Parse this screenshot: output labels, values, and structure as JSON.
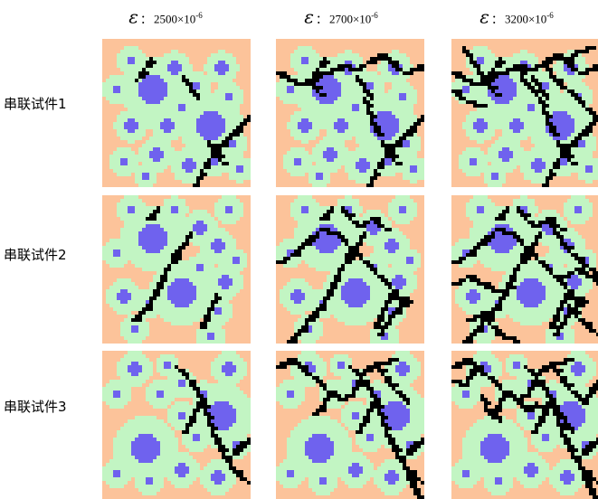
{
  "column_headers": [
    {
      "symbol": "ε",
      "separator": "：",
      "value": "2500×10",
      "exponent": "-6"
    },
    {
      "symbol": "ε",
      "separator": "：",
      "value": "2700×10",
      "exponent": "-6"
    },
    {
      "symbol": "ε",
      "separator": "：",
      "value": "3200×10",
      "exponent": "-6"
    }
  ],
  "row_labels": [
    "串联试件1",
    "串联试件2",
    "串联试件3"
  ],
  "colors": {
    "mortar": "#fcc39a",
    "itz": "#c2f5c3",
    "aggregate": "#6f62ee",
    "crack": "#000000"
  }
}
